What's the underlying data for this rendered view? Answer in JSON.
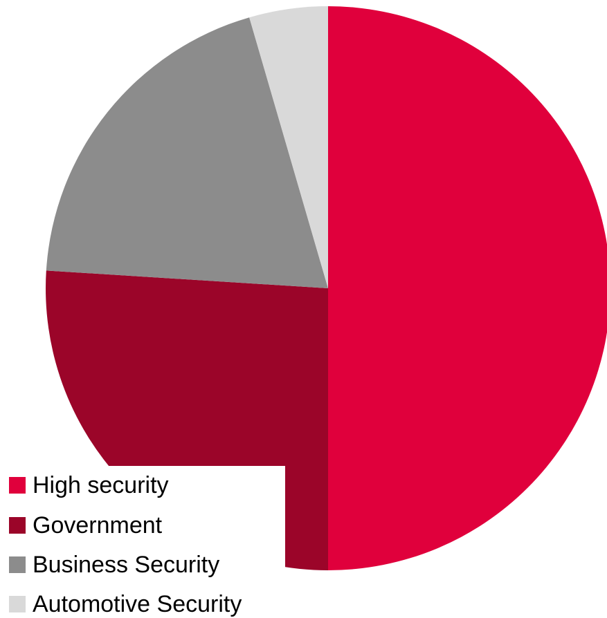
{
  "chart_data": {
    "type": "pie",
    "categories": [
      "High security",
      "Government",
      "Business Security",
      "Automotive Security"
    ],
    "values": [
      50,
      26,
      19.5,
      4.5
    ],
    "colors": [
      "#e0003c",
      "#9b0529",
      "#8c8c8c",
      "#d9d9d9"
    ],
    "start_angle": "12 o'clock",
    "direction": "clockwise",
    "legend_position": "bottom-left"
  },
  "legend": {
    "items": [
      {
        "label": "High security",
        "color": "#e0003c"
      },
      {
        "label": "Government",
        "color": "#9b0529"
      },
      {
        "label": "Business Security",
        "color": "#8c8c8c"
      },
      {
        "label": "Automotive Security",
        "color": "#d9d9d9"
      }
    ]
  }
}
